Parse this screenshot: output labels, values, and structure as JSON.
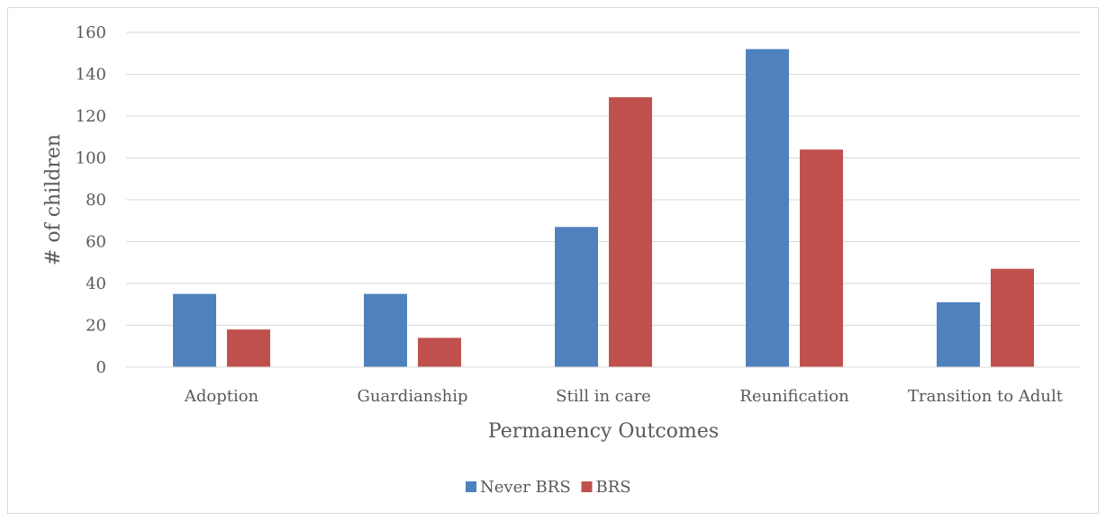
{
  "chart_data": {
    "type": "bar",
    "title": "",
    "xlabel": "Permanency Outcomes",
    "ylabel": "# of children",
    "categories": [
      "Adoption",
      "Guardianship",
      "Still in care",
      "Reunification",
      "Transition to Adult"
    ],
    "series": [
      {
        "name": "Never BRS",
        "color": "#4f81bd",
        "values": [
          35,
          35,
          67,
          152,
          31
        ]
      },
      {
        "name": "BRS",
        "color": "#c0504d",
        "values": [
          18,
          14,
          129,
          104,
          47
        ]
      }
    ],
    "ylim": [
      0,
      160
    ],
    "yticks": [
      0,
      20,
      40,
      60,
      80,
      100,
      120,
      140,
      160
    ],
    "grid": true,
    "legend_position": "bottom"
  }
}
